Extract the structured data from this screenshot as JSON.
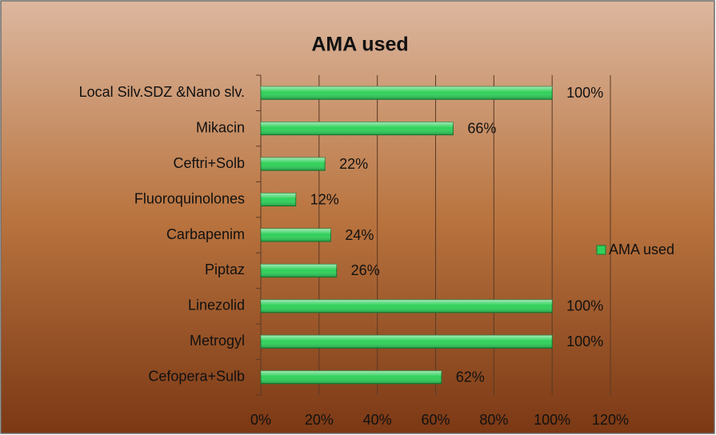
{
  "chart_data": {
    "type": "hbar",
    "title": "AMA used",
    "categories": [
      "Local Silv.SDZ &Nano slv.",
      "Mikacin",
      "Ceftri+Solb",
      "Fluoroquinolones",
      "Carbapenim",
      "Piptaz",
      "Linezolid",
      "Metrogyl",
      "Cefopera+Sulb"
    ],
    "series": [
      {
        "name": "AMA used",
        "color": "#2fd15a",
        "values": [
          100,
          66,
          22,
          12,
          24,
          26,
          100,
          100,
          62
        ],
        "value_labels": [
          "100%",
          "66%",
          "22%",
          "12%",
          "24%",
          "26%",
          "100%",
          "100%",
          "62%"
        ]
      }
    ],
    "xlim": [
      0,
      120
    ],
    "xticks": [
      {
        "value": 0,
        "label": "0%"
      },
      {
        "value": 20,
        "label": "20%"
      },
      {
        "value": 40,
        "label": "40%"
      },
      {
        "value": 60,
        "label": "60%"
      },
      {
        "value": 80,
        "label": "80%"
      },
      {
        "value": 100,
        "label": "100%"
      },
      {
        "value": 120,
        "label": "120%"
      }
    ],
    "grid": true,
    "legend": "right"
  }
}
